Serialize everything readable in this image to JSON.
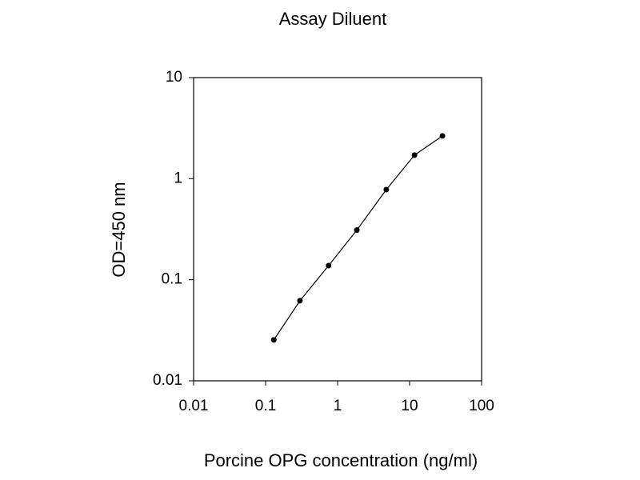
{
  "chart_data": {
    "type": "line",
    "title": "Assay Diluent",
    "x_label": "Porcine OPG concentration (ng/ml)",
    "y_label": "OD=450 nm",
    "x": [
      0.13,
      0.3,
      0.75,
      1.85,
      4.75,
      11.7,
      28.6
    ],
    "series": [
      {
        "color": "#000000",
        "values": [
          0.0254,
          0.062,
          0.138,
          0.31,
          0.78,
          1.71,
          2.65
        ]
      }
    ],
    "xlim": [
      0.01,
      100
    ],
    "xticks": [
      0.01,
      0.1,
      1,
      10,
      100
    ],
    "ylim": [
      0.01,
      10
    ],
    "yticks": [
      0.01,
      0.1,
      1,
      10
    ],
    "xscale": "log",
    "yscale": "log",
    "grid": false
  }
}
